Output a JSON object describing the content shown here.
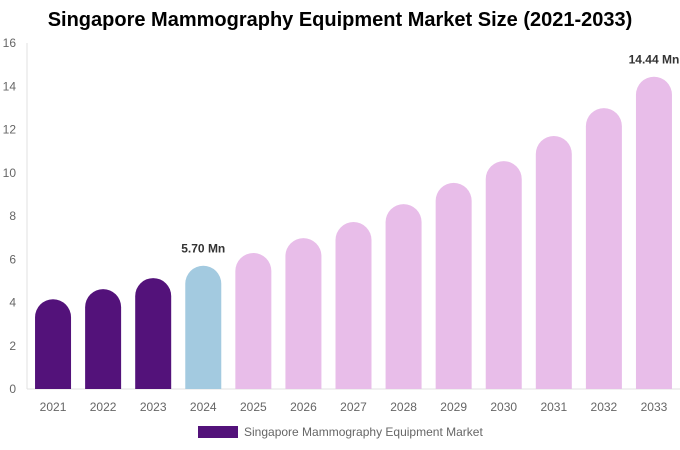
{
  "chart_data": {
    "type": "bar",
    "title": "Singapore Mammography Equipment Market Size (2021-2033)",
    "categories": [
      "2021",
      "2022",
      "2023",
      "2024",
      "2025",
      "2026",
      "2027",
      "2028",
      "2029",
      "2030",
      "2031",
      "2032",
      "2033"
    ],
    "series": [
      {
        "name": "Singapore Mammography Equipment Market",
        "values": [
          4.15,
          4.62,
          5.13,
          5.7,
          6.29,
          6.98,
          7.72,
          8.55,
          9.53,
          10.54,
          11.7,
          12.99,
          14.44
        ]
      }
    ],
    "data_labels": {
      "3": "5.70 Mn",
      "12": "14.44 Mn"
    },
    "ylim": [
      0,
      16
    ],
    "yticks": [
      0,
      2,
      4,
      6,
      8,
      10,
      12,
      14,
      16
    ],
    "grid": false,
    "legend_position": "bottom",
    "colors": {
      "historical": "#53127a",
      "base_year": "#a3cae0",
      "forecast": "#e8bde9"
    }
  }
}
